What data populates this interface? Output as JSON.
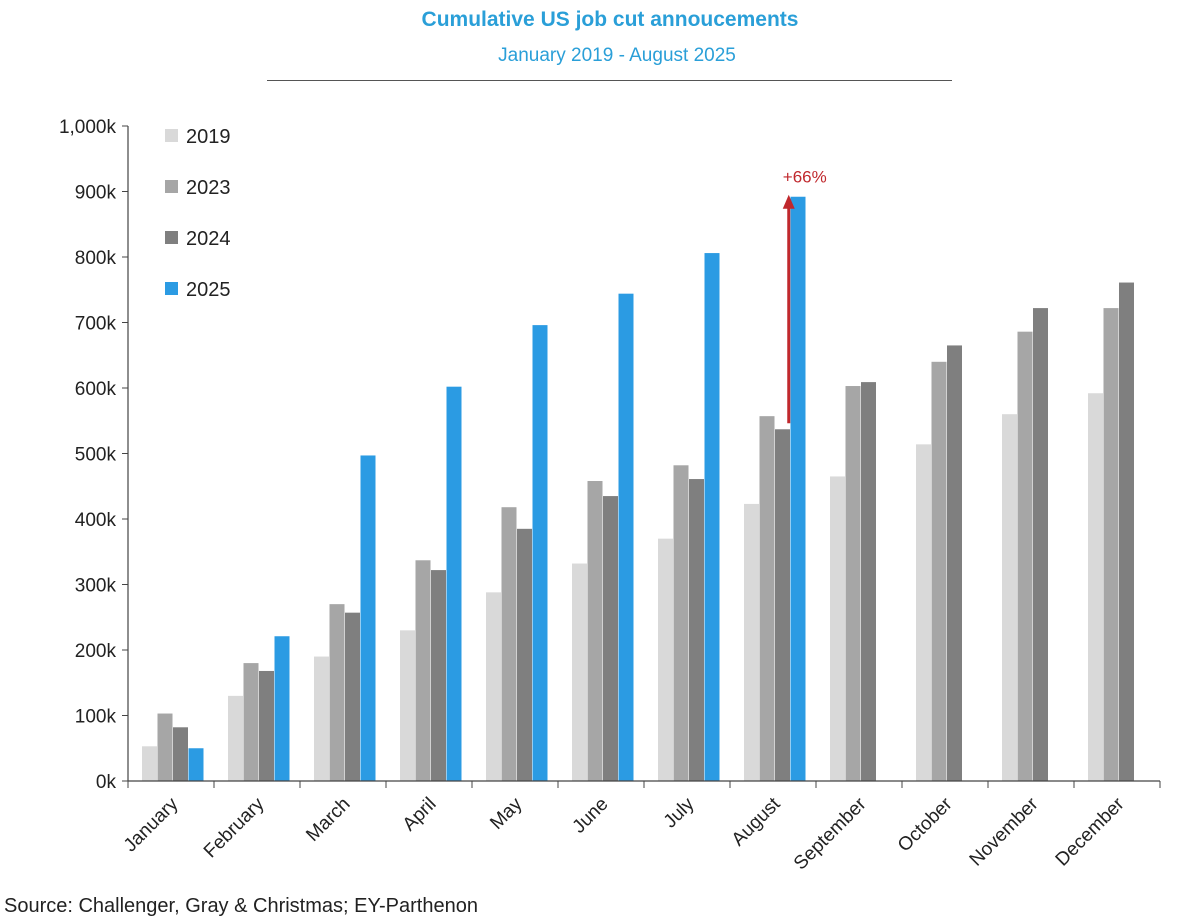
{
  "chart_data": {
    "type": "bar",
    "title": "Cumulative US job cut annoucements",
    "subtitle": "January 2019 - August 2025",
    "source": "Source: Challenger, Gray & Christmas; EY-Parthenon",
    "categories": [
      "January",
      "February",
      "March",
      "April",
      "May",
      "June",
      "July",
      "August",
      "September",
      "October",
      "November",
      "December"
    ],
    "series": [
      {
        "name": "2019",
        "color": "#d9d9d9",
        "values": [
          53,
          130,
          190,
          230,
          288,
          332,
          370,
          423,
          465,
          514,
          560,
          592
        ]
      },
      {
        "name": "2023",
        "color": "#a6a6a6",
        "values": [
          103,
          180,
          270,
          337,
          418,
          458,
          482,
          557,
          603,
          640,
          686,
          722
        ]
      },
      {
        "name": "2024",
        "color": "#7f7f7f",
        "values": [
          82,
          168,
          257,
          322,
          385,
          435,
          461,
          537,
          609,
          665,
          722,
          761
        ]
      },
      {
        "name": "2025",
        "color": "#2b9be3",
        "values": [
          50,
          221,
          497,
          602,
          696,
          744,
          806,
          892,
          null,
          null,
          null,
          null
        ]
      }
    ],
    "yticks": [
      "0k",
      "100k",
      "200k",
      "300k",
      "400k",
      "500k",
      "600k",
      "700k",
      "800k",
      "900k",
      "1,000k"
    ],
    "ylim": [
      0,
      1000
    ],
    "legend_position": "top-left",
    "annotation": {
      "text": "+66%",
      "category": "August",
      "from": 537,
      "to": 892,
      "color": "#c0282d"
    }
  }
}
